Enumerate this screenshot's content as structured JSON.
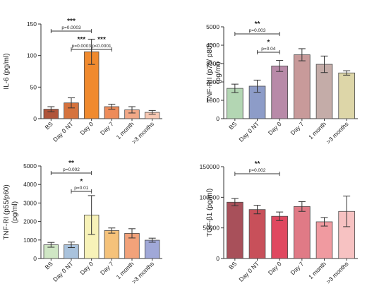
{
  "chart_data": [
    {
      "type": "bar",
      "ylabel": "IL-6 (pg/ml)",
      "ylim": [
        0,
        150
      ],
      "yticks": [
        0,
        50,
        100,
        150
      ],
      "categories": [
        "BS",
        "Day 0 NT",
        "Day 0",
        "Day 7",
        "1 month",
        ">3 months"
      ],
      "values": [
        15,
        25,
        106,
        19,
        14,
        10
      ],
      "errors": [
        4,
        8,
        20,
        4,
        5,
        3
      ],
      "colors": [
        "#b0543a",
        "#d5733e",
        "#f08a2e",
        "#ee8c5a",
        "#f2a887",
        "#f7c8b3"
      ],
      "annotations": [
        {
          "from": 0,
          "to": 2,
          "level": 1,
          "p_label": "p=0.0003",
          "stars": "***"
        },
        {
          "from": 1,
          "to": 2,
          "level": 2,
          "p_label": "p=0.0003",
          "stars": "***"
        },
        {
          "from": 2,
          "to": 3,
          "level": 2,
          "p_label": "p<0.0001",
          "stars": "***"
        }
      ]
    },
    {
      "type": "bar",
      "ylabel": "TNF-RII (p75/ p80) (pg/ml)",
      "ylim": [
        0,
        5000
      ],
      "yticks": [
        0,
        1000,
        2000,
        3000,
        4000,
        5000
      ],
      "categories": [
        "BS",
        "Day 0 NT",
        "Day 0",
        "Day 7",
        "1 month",
        ">3 months"
      ],
      "values": [
        1650,
        1770,
        2870,
        3480,
        2960,
        2490
      ],
      "errors": [
        230,
        330,
        300,
        330,
        450,
        120
      ],
      "colors": [
        "#b3d6b3",
        "#8d9cc8",
        "#b88aa8",
        "#c89a9a",
        "#c4aca8",
        "#ddd6a8"
      ],
      "annotations": [
        {
          "from": 0,
          "to": 2,
          "level": 1,
          "p_label": "p=0.003",
          "stars": "**"
        },
        {
          "from": 1,
          "to": 2,
          "level": 2,
          "p_label": "p=0.04",
          "stars": "*"
        }
      ]
    },
    {
      "type": "bar",
      "ylabel": "TNF-RI (p55/p60) (pg/ml)",
      "ylim": [
        0,
        5000
      ],
      "yticks": [
        0,
        1000,
        2000,
        3000,
        4000,
        5000
      ],
      "categories": [
        "BS",
        "Day 0 NT",
        "Day 0",
        "Day 7",
        "1 month",
        ">3 months"
      ],
      "values": [
        740,
        740,
        2350,
        1510,
        1360,
        990
      ],
      "errors": [
        130,
        150,
        1050,
        140,
        250,
        110
      ],
      "colors": [
        "#cfe6c4",
        "#a9c2dc",
        "#f7f2b8",
        "#f5c27a",
        "#f2a27a",
        "#a0a8d8"
      ],
      "annotations": [
        {
          "from": 0,
          "to": 2,
          "level": 1,
          "p_label": "p=0.002",
          "stars": "**"
        },
        {
          "from": 1,
          "to": 2,
          "level": 2,
          "p_label": "p=0.01",
          "stars": "*"
        }
      ]
    },
    {
      "type": "bar",
      "ylabel": "TGF-β1 (pg/ml)",
      "ylim": [
        0,
        150000
      ],
      "yticks": [
        0,
        50000,
        100000,
        150000
      ],
      "categories": [
        "BS",
        "Day 0 NT",
        "Day 0",
        "Day 7",
        "1 month",
        ">3 months"
      ],
      "values": [
        92000,
        80000,
        69000,
        85000,
        60000,
        77000
      ],
      "errors": [
        6000,
        7000,
        7000,
        8000,
        7000,
        25000
      ],
      "colors": [
        "#a8505a",
        "#c8505a",
        "#e04860",
        "#e07a86",
        "#f09aa0",
        "#f7c2c2"
      ],
      "annotations": [
        {
          "from": 0,
          "to": 2,
          "level": 1,
          "p_label": "p=0.002",
          "stars": "**"
        }
      ]
    }
  ]
}
